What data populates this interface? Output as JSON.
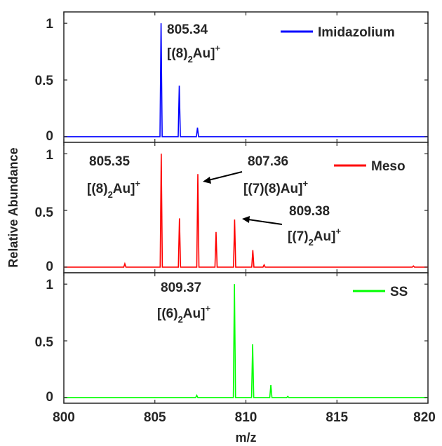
{
  "chart_data": {
    "type": "line",
    "xlabel": "m/z",
    "ylabel": "Relative Abundance",
    "xlim": [
      800,
      820
    ],
    "x_ticks": [
      "800",
      "805",
      "810",
      "815",
      "820"
    ],
    "y_ticks": [
      "0",
      "0.5",
      "1"
    ],
    "grid": false,
    "panels": [
      {
        "ylim": [
          -0.05,
          1.1
        ],
        "series": [
          {
            "name": "Imidazolium",
            "color": "#0000ff",
            "peaks": [
              {
                "x": 805.34,
                "y": 1.0
              },
              {
                "x": 806.34,
                "y": 0.45
              },
              {
                "x": 807.34,
                "y": 0.08
              }
            ]
          }
        ],
        "legend": {
          "label": "Imidazolium",
          "position": "top-right"
        },
        "annotations": [
          {
            "id": "p1a1",
            "x": 805.34,
            "y": 1.0,
            "label": "805.34",
            "formula": {
              "pre": "[(8)",
              "sub": "2",
              "post": "Au]",
              "sup": "+"
            }
          }
        ]
      },
      {
        "ylim": [
          -0.05,
          1.1
        ],
        "series": [
          {
            "name": "Meso",
            "color": "#ff0000",
            "peaks": [
              {
                "x": 803.35,
                "y": 0.03
              },
              {
                "x": 805.35,
                "y": 1.0
              },
              {
                "x": 806.35,
                "y": 0.43
              },
              {
                "x": 807.36,
                "y": 0.82
              },
              {
                "x": 808.36,
                "y": 0.31
              },
              {
                "x": 809.38,
                "y": 0.42
              },
              {
                "x": 810.38,
                "y": 0.15
              },
              {
                "x": 811.0,
                "y": 0.02
              },
              {
                "x": 819.2,
                "y": 0.01
              }
            ]
          }
        ],
        "legend": {
          "label": "Meso",
          "position": "top-right"
        },
        "annotations": [
          {
            "id": "p2a1",
            "x": 805.35,
            "y": 1.0,
            "label": "805.35",
            "formula": {
              "pre": "[(8)",
              "sub": "2",
              "post": "Au]",
              "sup": "+"
            }
          },
          {
            "id": "p2a2",
            "x": 807.36,
            "y": 0.82,
            "label": "807.36",
            "formula": {
              "pre": "[(7)(8)Au]",
              "sub": "",
              "post": "",
              "sup": "+"
            }
          },
          {
            "id": "p2a3",
            "x": 809.38,
            "y": 0.42,
            "label": "809.38",
            "formula": {
              "pre": "[(7)",
              "sub": "2",
              "post": "Au]",
              "sup": "+"
            }
          }
        ]
      },
      {
        "ylim": [
          -0.05,
          1.1
        ],
        "series": [
          {
            "name": "SS",
            "color": "#00ff00",
            "peaks": [
              {
                "x": 807.3,
                "y": 0.02
              },
              {
                "x": 809.37,
                "y": 1.0
              },
              {
                "x": 810.37,
                "y": 0.47
              },
              {
                "x": 811.37,
                "y": 0.11
              },
              {
                "x": 812.3,
                "y": 0.01
              }
            ]
          }
        ],
        "legend": {
          "label": "SS",
          "position": "top-right"
        },
        "annotations": [
          {
            "id": "p3a1",
            "x": 809.37,
            "y": 1.0,
            "label": "809.37",
            "formula": {
              "pre": "[(6)",
              "sub": "2",
              "post": "Au]",
              "sup": "+"
            }
          }
        ]
      }
    ]
  }
}
